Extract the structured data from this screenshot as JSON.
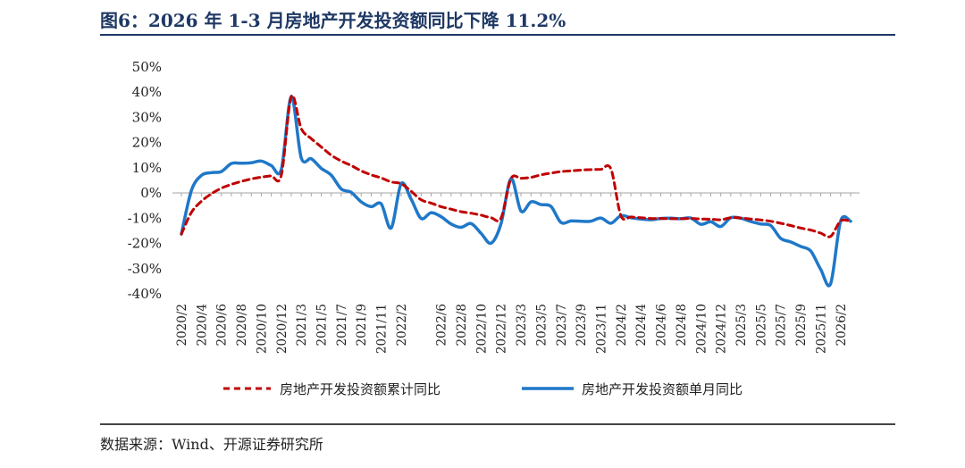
{
  "header": {
    "title": "图6：2026 年 1-3 月房地产开发投资额同比下降 11.2%"
  },
  "footer": {
    "source": "数据来源：Wind、开源证券研究所"
  },
  "colors": {
    "cumulative": "#c00000",
    "monthly": "#1f78c8",
    "title": "#1f3864"
  },
  "chart_data": {
    "type": "line",
    "title": "2026 年 1-3 月房地产开发投资额同比下降 11.2%",
    "xlabel": "",
    "ylabel": "",
    "ylim": [
      -40,
      50
    ],
    "y_ticks": [
      50,
      40,
      30,
      20,
      10,
      0,
      -10,
      -20,
      -30,
      -40
    ],
    "y_tick_labels": [
      "50%",
      "40%",
      "30%",
      "20%",
      "10%",
      "0%",
      "-10%",
      "-20%",
      "-30%",
      "-40%"
    ],
    "x_tick_labels": [
      "2020/2",
      "2020/4",
      "2020/6",
      "2020/8",
      "2020/10",
      "2020/12",
      "2021/3",
      "2021/5",
      "2021/7",
      "2021/9",
      "2021/11",
      "2022/2",
      "2022/6",
      "2022/8",
      "2022/10",
      "2022/12",
      "2023/3",
      "2023/5",
      "2023/7",
      "2023/9",
      "2023/11",
      "2024/2",
      "2024/4",
      "2024/6",
      "2024/8",
      "2024/10",
      "2024/12",
      "2025/3",
      "2025/5",
      "2025/7",
      "2025/9",
      "2025/11",
      "2026/2"
    ],
    "x": [
      "2020/2",
      "2020/3",
      "2020/4",
      "2020/5",
      "2020/6",
      "2020/7",
      "2020/8",
      "2020/9",
      "2020/10",
      "2020/11",
      "2020/12",
      "2021/2",
      "2021/3",
      "2021/4",
      "2021/5",
      "2021/6",
      "2021/7",
      "2021/8",
      "2021/9",
      "2021/10",
      "2021/11",
      "2021/12",
      "2022/2",
      "2022/3",
      "2022/4",
      "2022/5",
      "2022/6",
      "2022/7",
      "2022/8",
      "2022/9",
      "2022/10",
      "2022/11",
      "2022/12",
      "2023/2",
      "2023/3",
      "2023/4",
      "2023/5",
      "2023/6",
      "2023/7",
      "2023/8",
      "2023/9",
      "2023/10",
      "2023/11",
      "2023/12",
      "2024/2",
      "2024/3",
      "2024/4",
      "2024/5",
      "2024/6",
      "2024/7",
      "2024/8",
      "2024/9",
      "2024/10",
      "2024/11",
      "2024/12",
      "2025/2",
      "2025/3",
      "2025/4",
      "2025/5",
      "2025/6",
      "2025/7",
      "2025/8",
      "2025/9",
      "2025/10",
      "2025/11",
      "2025/12",
      "2026/2",
      "2026/3"
    ],
    "series": [
      {
        "name": "房地产开发投资额累计同比",
        "style": "dashed",
        "values": [
          -16.3,
          -7.7,
          -3.3,
          -0.3,
          1.9,
          3.4,
          4.6,
          5.6,
          6.3,
          6.8,
          7.0,
          38.3,
          25.6,
          21.6,
          18.3,
          15.0,
          12.7,
          10.9,
          8.8,
          7.2,
          6.0,
          4.4,
          3.7,
          0.7,
          -2.7,
          -4.0,
          -5.4,
          -6.4,
          -7.4,
          -8.0,
          -8.8,
          -9.8,
          -10.0,
          5.7,
          5.8,
          6.2,
          7.2,
          7.9,
          8.5,
          8.8,
          9.1,
          9.3,
          9.4,
          9.6,
          -9.0,
          -9.5,
          -9.8,
          -10.1,
          -10.1,
          -10.2,
          -10.2,
          -10.1,
          -10.3,
          -10.4,
          -10.6,
          -9.8,
          -9.9,
          -10.3,
          -10.7,
          -11.2,
          -12.0,
          -12.9,
          -13.9,
          -14.7,
          -15.9,
          -17.2,
          -11.1,
          -11.2
        ]
      },
      {
        "name": "房地产开发投资额单月同比",
        "style": "solid",
        "values": [
          -16.3,
          1.0,
          7.0,
          8.1,
          8.5,
          11.7,
          11.8,
          12.0,
          12.7,
          10.9,
          9.3,
          38.3,
          14.0,
          13.6,
          9.8,
          7.1,
          1.6,
          0.3,
          -3.5,
          -5.4,
          -4.3,
          -13.9,
          3.7,
          -2.4,
          -10.1,
          -7.8,
          -9.4,
          -12.3,
          -13.6,
          -12.1,
          -16.0,
          -19.9,
          -12.2,
          5.7,
          -7.2,
          -3.5,
          -4.6,
          -5.3,
          -11.7,
          -11.1,
          -11.2,
          -11.2,
          -9.9,
          -12.0,
          -9.0,
          -9.8,
          -10.3,
          -10.6,
          -10.1,
          -10.0,
          -10.2,
          -9.9,
          -12.4,
          -11.4,
          -13.3,
          -9.8,
          -10.0,
          -11.3,
          -12.3,
          -12.9,
          -18.0,
          -19.4,
          -21.2,
          -23.0,
          -30.3,
          -36.0,
          -11.1,
          -11.2
        ]
      }
    ],
    "legend": {
      "position": "bottom",
      "items": [
        "房地产开发投资额累计同比",
        "房地产开发投资额单月同比"
      ]
    },
    "grid": false
  }
}
